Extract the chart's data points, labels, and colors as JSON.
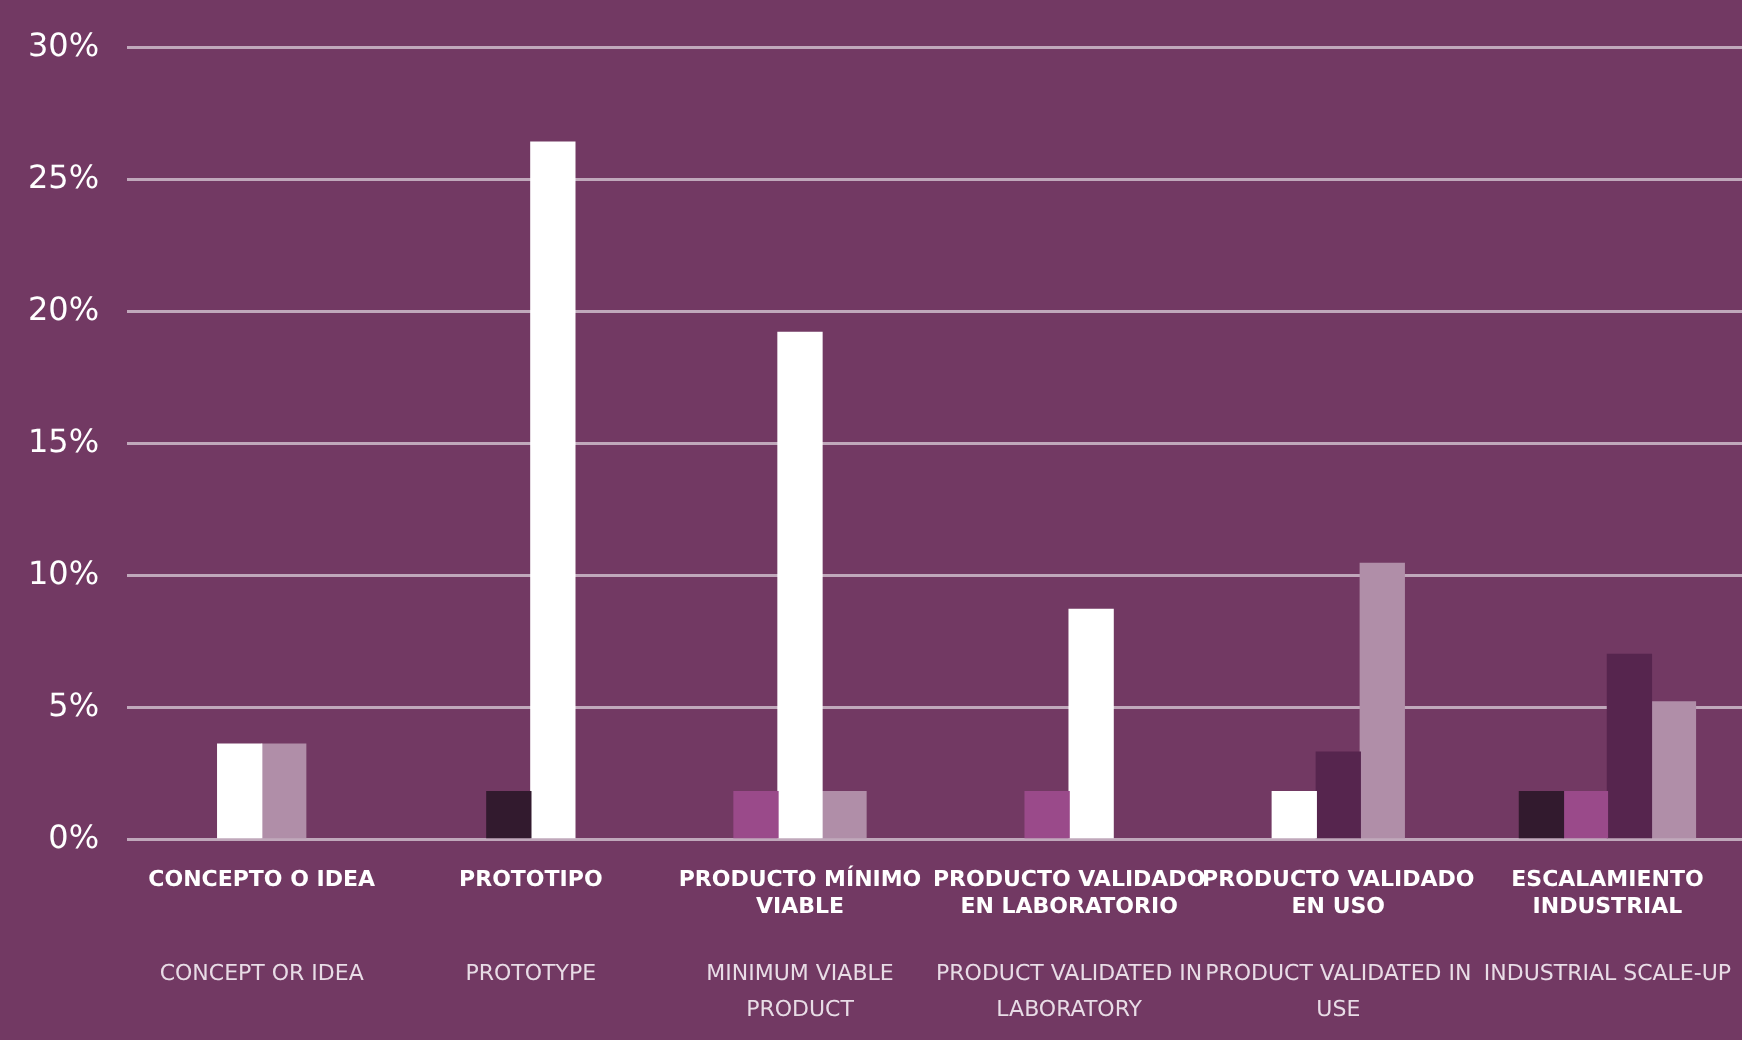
{
  "chart_data": {
    "type": "bar",
    "categories": [
      "CONCEPTO O IDEA",
      "PROTOTIPO",
      "PRODUCTO MÍNIMO VIABLE",
      "PRODUCTO VALIDADO EN LABORATORIO",
      "PRODUCTO VALIDADO EN USO",
      "ESCALAMIENTO INDUSTRIAL"
    ],
    "annotations": [
      "CONCEPT OR IDEA",
      "PROTOTYPE",
      "MINIMUM VIABLE PRODUCT",
      "PRODUCT VALIDATED IN LABORATORY",
      "PRODUCT VALIDATED IN USE",
      "INDUSTRIAL SCALE-UP"
    ],
    "series": [
      {
        "color": "#321a2e",
        "values": [
          null,
          1.8,
          null,
          null,
          null,
          1.8
        ]
      },
      {
        "color": "#9a4a8a",
        "values": [
          null,
          null,
          1.8,
          1.8,
          null,
          1.8
        ]
      },
      {
        "color": "#ffffff",
        "values": [
          3.6,
          26.4,
          19.2,
          8.7,
          1.8,
          null
        ]
      },
      {
        "color": "#56254e",
        "values": [
          null,
          null,
          null,
          null,
          3.3,
          7.0
        ]
      },
      {
        "color": "#b08ea8",
        "values": [
          3.6,
          null,
          1.8,
          null,
          10.45,
          5.2
        ]
      }
    ],
    "ylim": [
      0,
      30
    ],
    "yticks": [
      {
        "value": 0,
        "label": "0%"
      },
      {
        "value": 5,
        "label": "5%"
      },
      {
        "value": 10,
        "label": "10%"
      },
      {
        "value": 15,
        "label": "15%"
      },
      {
        "value": 20,
        "label": "20%"
      },
      {
        "value": 25,
        "label": "25%"
      },
      {
        "value": 30,
        "label": "30%"
      }
    ],
    "grid": "y",
    "legend": false
  }
}
